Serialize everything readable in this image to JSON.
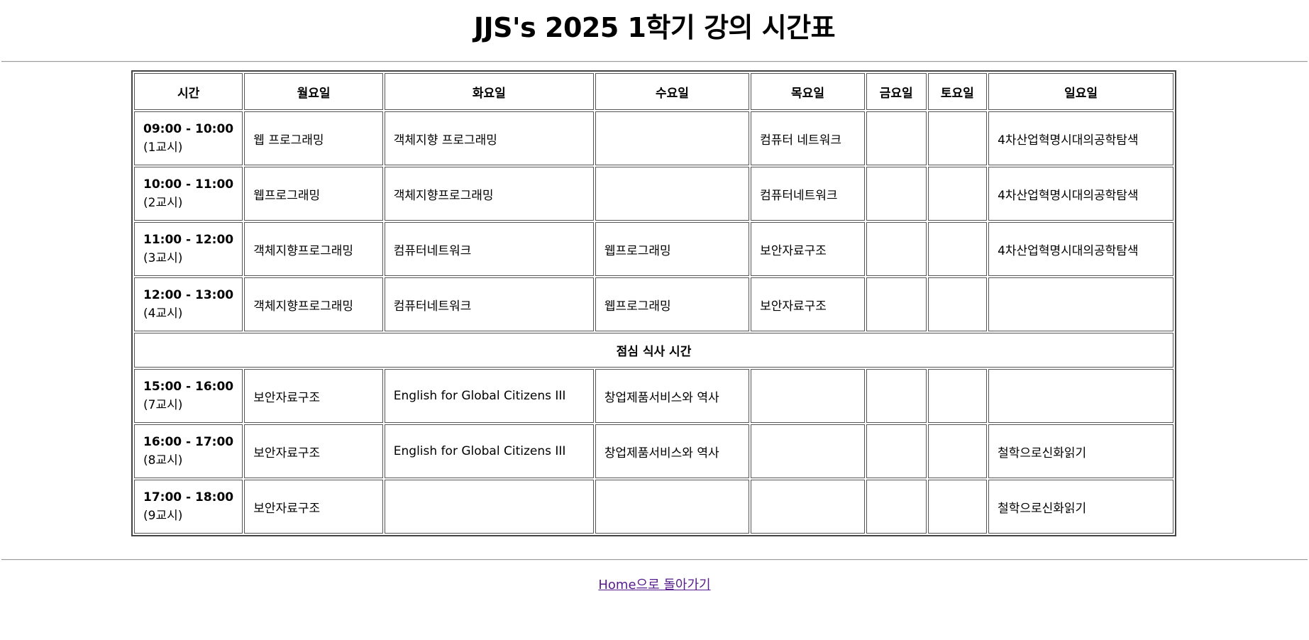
{
  "page": {
    "title": "JJS's 2025 1학기 강의 시간표"
  },
  "table": {
    "headers": [
      "시간",
      "월요일",
      "화요일",
      "수요일",
      "목요일",
      "금요일",
      "토요일",
      "일요일"
    ],
    "rows_before_lunch": [
      {
        "time": "09:00 - 10:00",
        "period": "(1교시)",
        "cells": [
          "웹 프로그래밍",
          "객체지향 프로그래밍",
          "",
          "컴퓨터 네트워크",
          "",
          "",
          "4차산업혁명시대의공학탐색"
        ]
      },
      {
        "time": "10:00 - 11:00",
        "period": "(2교시)",
        "cells": [
          "웹프로그래밍",
          "객체지향프로그래밍",
          "",
          "컴퓨터네트워크",
          "",
          "",
          "4차산업혁명시대의공학탐색"
        ]
      },
      {
        "time": "11:00 - 12:00",
        "period": "(3교시)",
        "cells": [
          "객체지향프로그래밍",
          "컴퓨터네트워크",
          "웹프로그래밍",
          "보안자료구조",
          "",
          "",
          "4차산업혁명시대의공학탐색"
        ]
      },
      {
        "time": "12:00 - 13:00",
        "period": "(4교시)",
        "cells": [
          "객체지향프로그래밍",
          "컴퓨터네트워크",
          "웹프로그래밍",
          "보안자료구조",
          "",
          "",
          ""
        ]
      }
    ],
    "lunch_label": "점심 식사 시간",
    "rows_after_lunch": [
      {
        "time": "15:00 - 16:00",
        "period": "(7교시)",
        "cells": [
          "보안자료구조",
          "English for Global Citizens III",
          "창업제품서비스와 역사",
          "",
          "",
          "",
          ""
        ]
      },
      {
        "time": "16:00 - 17:00",
        "period": "(8교시)",
        "cells": [
          "보안자료구조",
          "English for Global Citizens III",
          "창업제품서비스와 역사",
          "",
          "",
          "",
          "철학으로신화읽기"
        ]
      },
      {
        "time": "17:00 - 18:00",
        "period": "(9교시)",
        "cells": [
          "보안자료구조",
          "",
          "",
          "",
          "",
          "",
          "철학으로신화읽기"
        ]
      }
    ]
  },
  "footer": {
    "home_link": "Home으로 돌아가기"
  }
}
